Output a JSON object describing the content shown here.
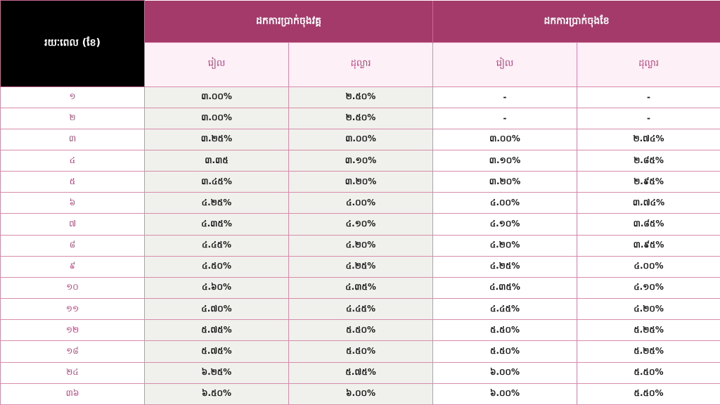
{
  "header": {
    "term_label": "រយៈពេល (ខែ)",
    "group_year": "ដកការប្រាក់ចុងវគ្គ",
    "group_month": "ដកការប្រាក់ចុងខែ",
    "riel": "រៀល",
    "dollar": "ដុល្លារ"
  },
  "rows": [
    {
      "term": "១",
      "year_riel": "៣.០០%",
      "year_usd": "២.៥០%",
      "month_riel": "-",
      "month_usd": "-"
    },
    {
      "term": "២",
      "year_riel": "៣.០០%",
      "year_usd": "២.៥០%",
      "month_riel": "-",
      "month_usd": "-"
    },
    {
      "term": "៣",
      "year_riel": "៣.២៥%",
      "year_usd": "៣.០០%",
      "month_riel": "៣.០០%",
      "month_usd": "២.៧៤%"
    },
    {
      "term": "៤",
      "year_riel": "៣.៣៥",
      "year_usd": "៣.១០%",
      "month_riel": "៣.១០%",
      "month_usd": "២.៨៥%"
    },
    {
      "term": "៥",
      "year_riel": "៣.៤៥%",
      "year_usd": "៣.២០%",
      "month_riel": "៣.២០%",
      "month_usd": "២.៩៥%"
    },
    {
      "term": "៦",
      "year_riel": "៤.២៥%",
      "year_usd": "៤.០០%",
      "month_riel": "៤.០០%",
      "month_usd": "៣.៧៤%"
    },
    {
      "term": "៧",
      "year_riel": "៤.៣៥%",
      "year_usd": "៤.១០%",
      "month_riel": "៤.១០%",
      "month_usd": "៣.៨៥%"
    },
    {
      "term": "៨",
      "year_riel": "៤.៤៥%",
      "year_usd": "៤.២០%",
      "month_riel": "៤.២០%",
      "month_usd": "៣.៩៥%"
    },
    {
      "term": "៩",
      "year_riel": "៤.៥០%",
      "year_usd": "៤.២៥%",
      "month_riel": "៤.២៥%",
      "month_usd": "៤.០០%"
    },
    {
      "term": "១០",
      "year_riel": "៤.៦០%",
      "year_usd": "៤.៣៥%",
      "month_riel": "៤.៣៥%",
      "month_usd": "៤.១០%"
    },
    {
      "term": "១១",
      "year_riel": "៤.៧០%",
      "year_usd": "៤.៤៥%",
      "month_riel": "៤.៤៥%",
      "month_usd": "៤.២០%"
    },
    {
      "term": "១២",
      "year_riel": "៥.៧៥%",
      "year_usd": "៥.៥០%",
      "month_riel": "៥.៥០%",
      "month_usd": "៥.២៥%"
    },
    {
      "term": "១៨",
      "year_riel": "៥.៧៥%",
      "year_usd": "៥.៥០%",
      "month_riel": "៥.៥០%",
      "month_usd": "៥.២៥%"
    },
    {
      "term": "២៤",
      "year_riel": "៦.២៥%",
      "year_usd": "៥.៧៥%",
      "month_riel": "៦.០០%",
      "month_usd": "៥.៥០%"
    },
    {
      "term": "៣៦",
      "year_riel": "៦.៥០%",
      "year_usd": "៦.០០%",
      "month_riel": "៦.០០%",
      "month_usd": "៥.៥០%"
    }
  ]
}
